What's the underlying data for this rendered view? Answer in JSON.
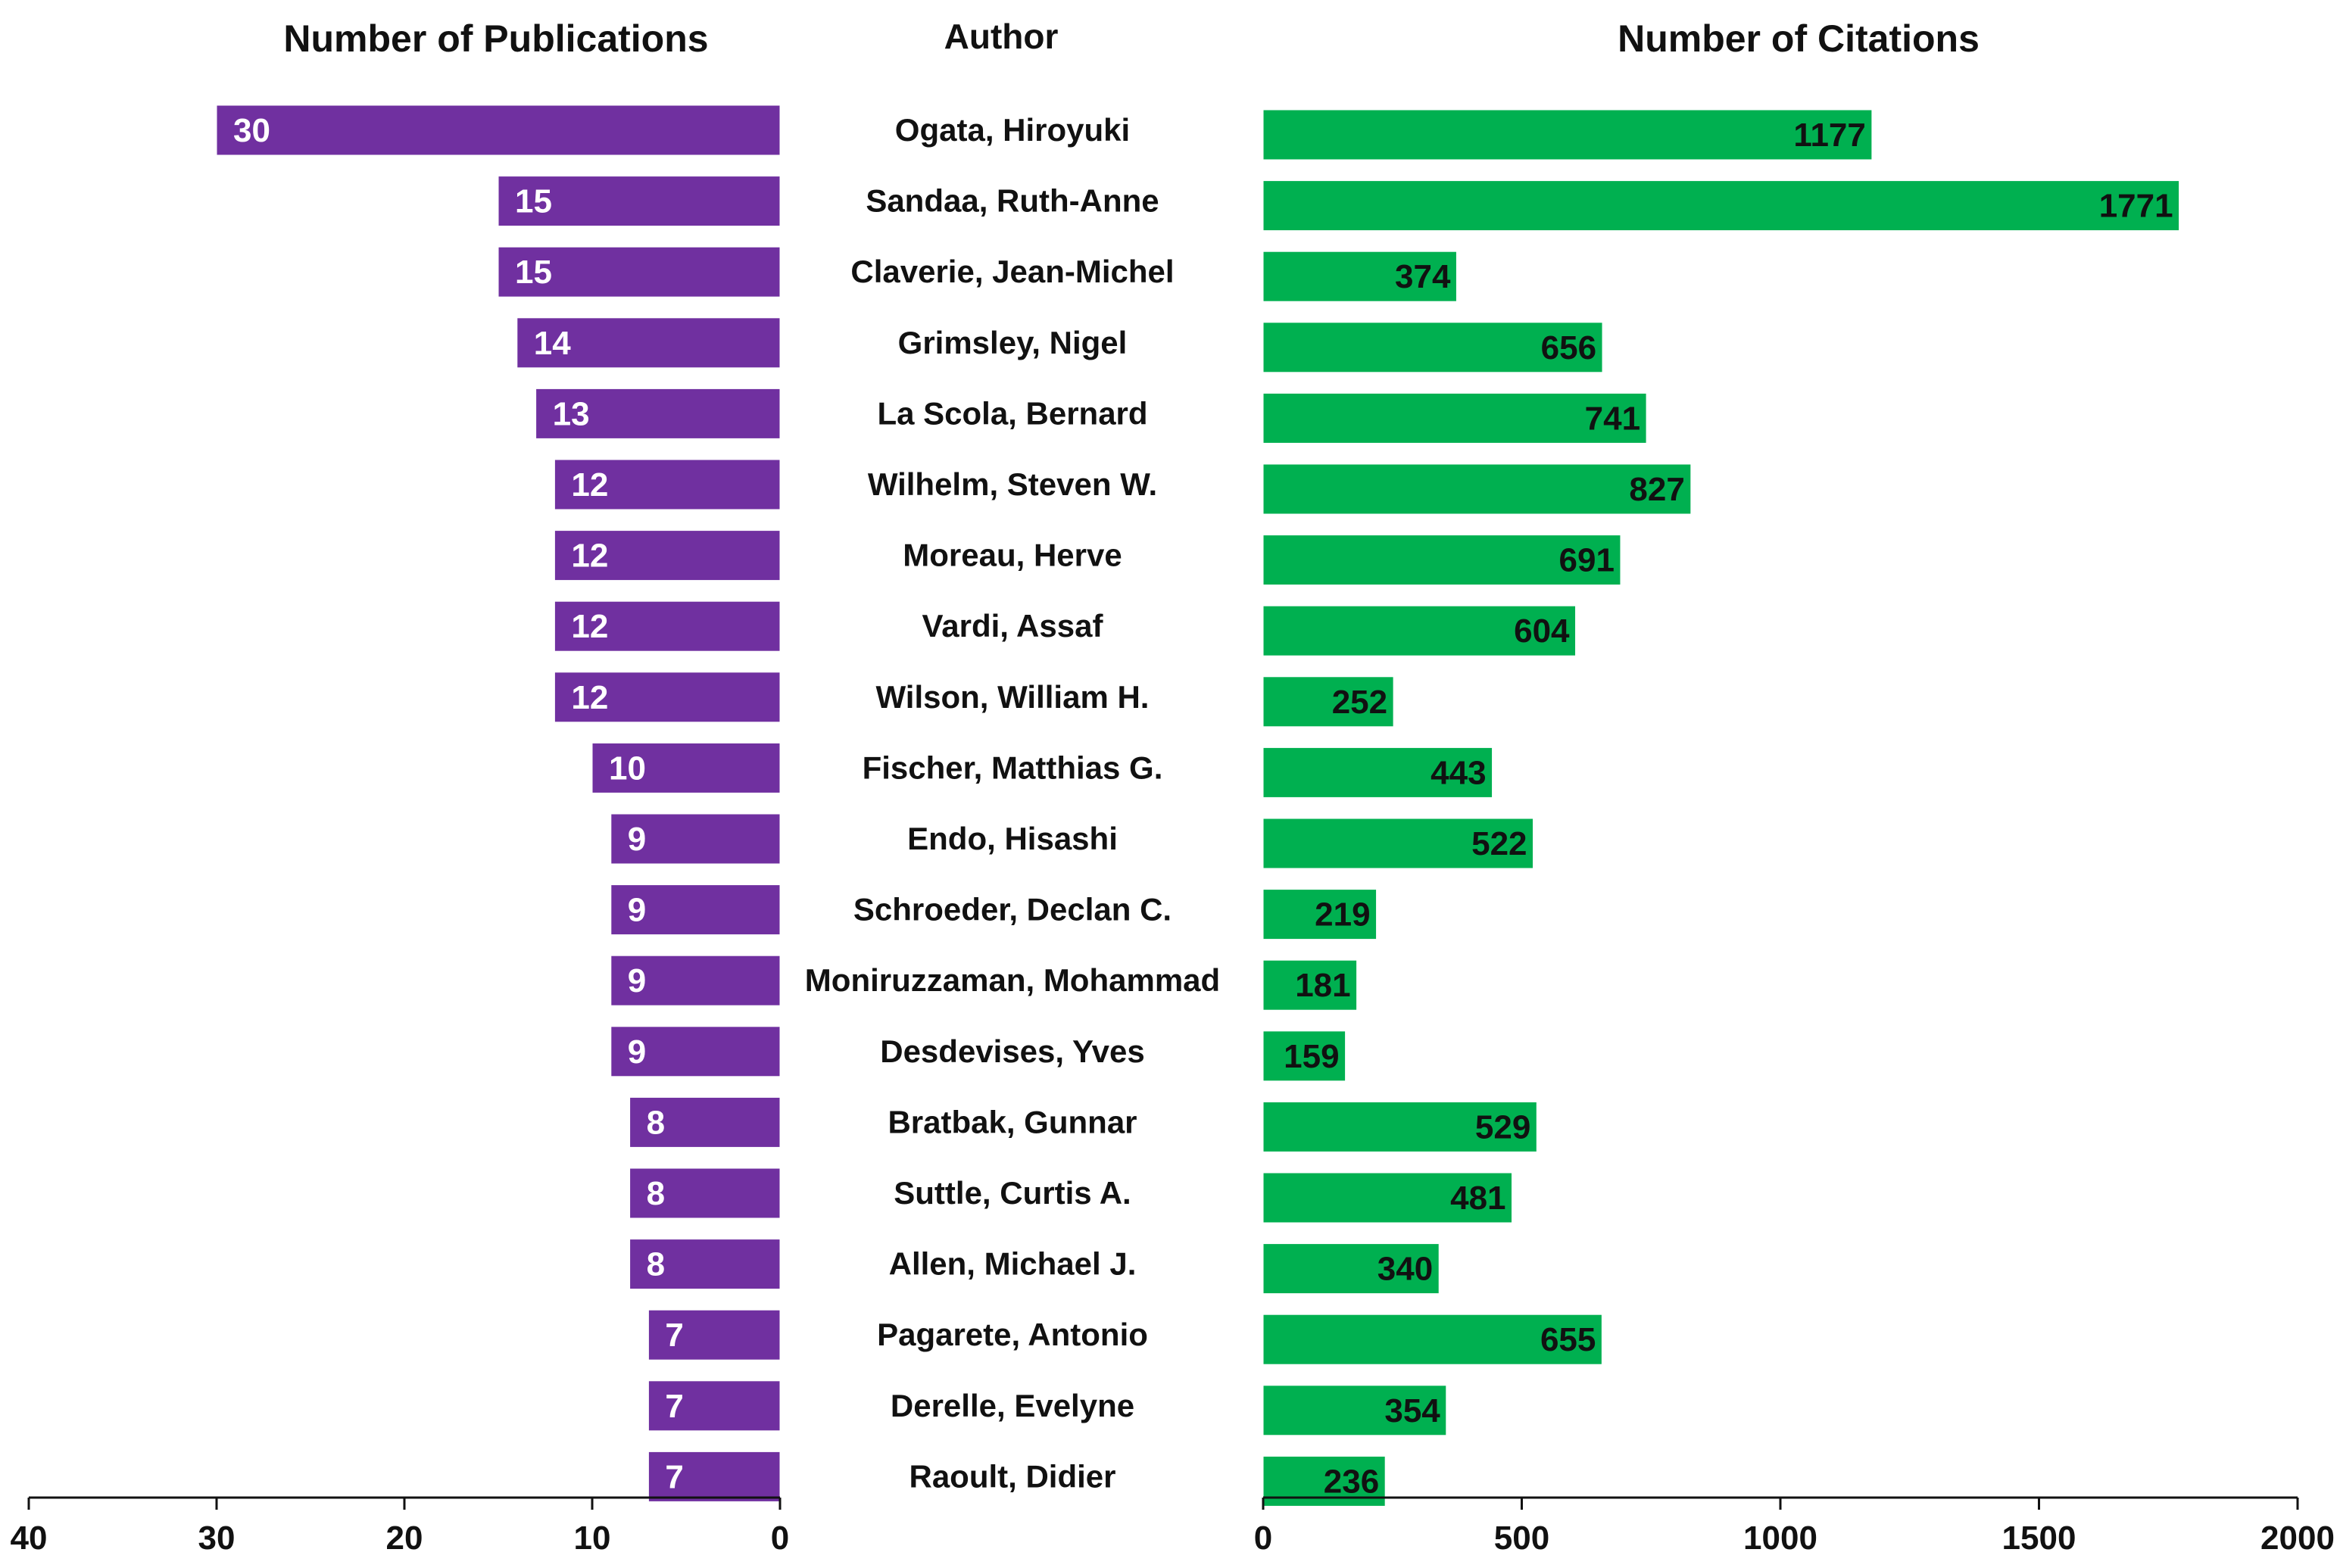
{
  "headers": {
    "left": "Number of Publications",
    "middle": "Author",
    "right": "Number of Citations"
  },
  "colors": {
    "publications": "#7030A0",
    "citations": "#00B050",
    "axis": "#111111"
  },
  "chart_data": [
    {
      "type": "bar",
      "orientation": "horizontal",
      "direction": "right-to-left",
      "title": "Number of Publications",
      "categories": [
        "Ogata, Hiroyuki",
        "Sandaa, Ruth-Anne",
        "Claverie, Jean-Michel",
        "Grimsley, Nigel",
        "La Scola, Bernard",
        "Wilhelm, Steven W.",
        "Moreau, Herve",
        "Vardi, Assaf",
        "Wilson, William H.",
        "Fischer, Matthias G.",
        "Endo, Hisashi",
        "Schroeder, Declan C.",
        "Moniruzzaman, Mohammad",
        "Desdevises, Yves",
        "Bratbak, Gunnar",
        "Suttle, Curtis A.",
        "Allen, Michael J.",
        "Pagarete, Antonio",
        "Derelle, Evelyne",
        "Raoult, Didier"
      ],
      "values": [
        30,
        15,
        15,
        14,
        13,
        12,
        12,
        12,
        12,
        10,
        9,
        9,
        9,
        9,
        8,
        8,
        8,
        7,
        7,
        7
      ],
      "xlim": [
        0,
        40
      ],
      "xticks": [
        0,
        10,
        20,
        30,
        40
      ],
      "grid": false
    },
    {
      "type": "bar",
      "orientation": "horizontal",
      "title": "Number of Citations",
      "categories": [
        "Ogata, Hiroyuki",
        "Sandaa, Ruth-Anne",
        "Claverie, Jean-Michel",
        "Grimsley, Nigel",
        "La Scola, Bernard",
        "Wilhelm, Steven W.",
        "Moreau, Herve",
        "Vardi, Assaf",
        "Wilson, William H.",
        "Fischer, Matthias G.",
        "Endo, Hisashi",
        "Schroeder, Declan C.",
        "Moniruzzaman, Mohammad",
        "Desdevises, Yves",
        "Bratbak, Gunnar",
        "Suttle, Curtis A.",
        "Allen, Michael J.",
        "Pagarete, Antonio",
        "Derelle, Evelyne",
        "Raoult, Didier"
      ],
      "values": [
        1177,
        1771,
        374,
        656,
        741,
        827,
        691,
        604,
        252,
        443,
        522,
        219,
        181,
        159,
        529,
        481,
        340,
        655,
        354,
        236
      ],
      "xlim": [
        0,
        2000
      ],
      "xticks": [
        0,
        500,
        1000,
        1500,
        2000
      ],
      "grid": false
    }
  ]
}
